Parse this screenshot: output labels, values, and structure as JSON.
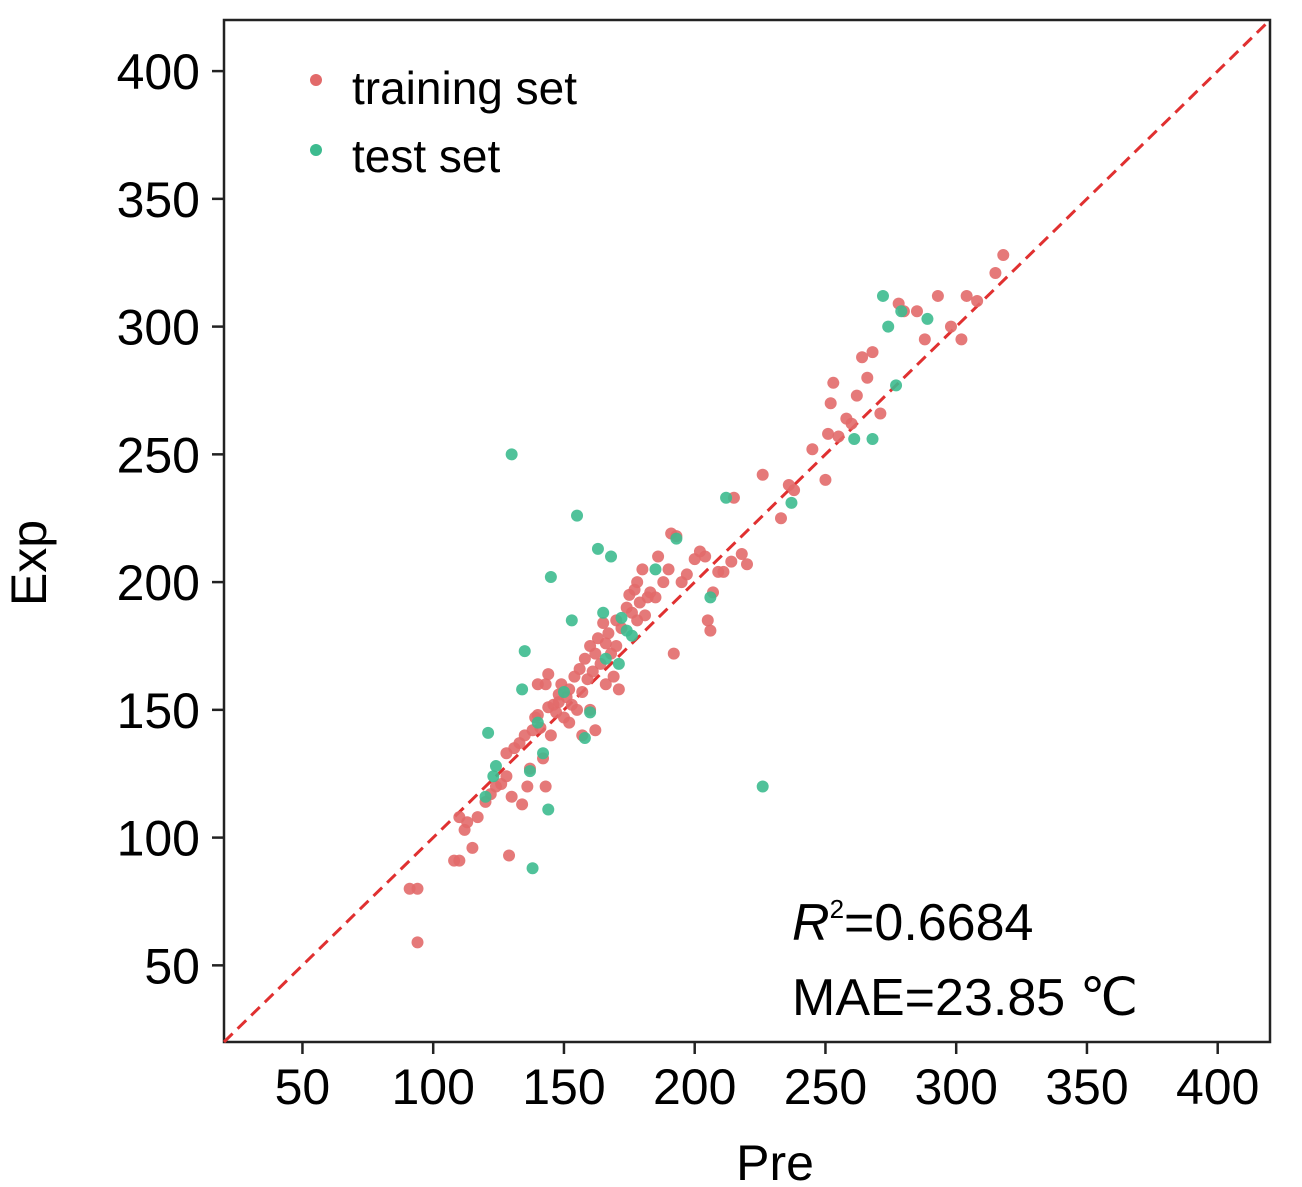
{
  "chart_data": {
    "type": "scatter",
    "xlabel": "Pre",
    "ylabel": "Exp",
    "xlim": [
      20,
      420
    ],
    "ylim": [
      20,
      420
    ],
    "xticks": [
      50,
      100,
      150,
      200,
      250,
      300,
      350,
      400
    ],
    "yticks": [
      50,
      100,
      150,
      200,
      250,
      300,
      350,
      400
    ],
    "reference_line": {
      "from": [
        20,
        20
      ],
      "to": [
        420,
        420
      ],
      "style": "dashed",
      "color": "#e03030"
    },
    "legend": {
      "placement": "top-left",
      "entries": [
        {
          "label": "training set",
          "color": "#e26a6a"
        },
        {
          "label": "test set",
          "color": "#3dbb8f"
        }
      ]
    },
    "annotations": {
      "r2_symbol": "R",
      "r2_sup": "2",
      "r2_value": "=0.6684",
      "mae": "MAE=23.85 ℃"
    },
    "series": [
      {
        "name": "training set",
        "color": "#e26a6a",
        "points": [
          [
            91,
            80
          ],
          [
            94,
            80
          ],
          [
            94,
            59
          ],
          [
            108,
            91
          ],
          [
            110,
            91
          ],
          [
            112,
            103
          ],
          [
            113,
            106
          ],
          [
            110,
            108
          ],
          [
            115,
            96
          ],
          [
            117,
            108
          ],
          [
            120,
            114
          ],
          [
            122,
            117
          ],
          [
            124,
            120
          ],
          [
            126,
            121
          ],
          [
            128,
            124
          ],
          [
            128,
            133
          ],
          [
            129,
            93
          ],
          [
            130,
            116
          ],
          [
            131,
            135
          ],
          [
            133,
            137
          ],
          [
            134,
            113
          ],
          [
            135,
            140
          ],
          [
            136,
            120
          ],
          [
            137,
            127
          ],
          [
            138,
            142
          ],
          [
            139,
            147
          ],
          [
            140,
            148
          ],
          [
            141,
            143
          ],
          [
            142,
            131
          ],
          [
            143,
            120
          ],
          [
            143,
            160
          ],
          [
            144,
            151
          ],
          [
            145,
            140
          ],
          [
            146,
            152
          ],
          [
            147,
            149
          ],
          [
            148,
            153
          ],
          [
            149,
            160
          ],
          [
            150,
            147
          ],
          [
            151,
            155
          ],
          [
            152,
            158
          ],
          [
            153,
            152
          ],
          [
            154,
            163
          ],
          [
            155,
            150
          ],
          [
            156,
            166
          ],
          [
            157,
            157
          ],
          [
            158,
            170
          ],
          [
            159,
            162
          ],
          [
            160,
            175
          ],
          [
            161,
            165
          ],
          [
            162,
            172
          ],
          [
            163,
            178
          ],
          [
            164,
            168
          ],
          [
            165,
            184
          ],
          [
            166,
            176
          ],
          [
            167,
            180
          ],
          [
            168,
            172
          ],
          [
            169,
            163
          ],
          [
            170,
            185
          ],
          [
            171,
            158
          ],
          [
            172,
            182
          ],
          [
            174,
            190
          ],
          [
            175,
            195
          ],
          [
            176,
            188
          ],
          [
            177,
            197
          ],
          [
            178,
            200
          ],
          [
            179,
            192
          ],
          [
            180,
            205
          ],
          [
            181,
            187
          ],
          [
            183,
            196
          ],
          [
            185,
            194
          ],
          [
            186,
            210
          ],
          [
            188,
            200
          ],
          [
            190,
            205
          ],
          [
            191,
            219
          ],
          [
            192,
            172
          ],
          [
            193,
            218
          ],
          [
            195,
            200
          ],
          [
            197,
            203
          ],
          [
            200,
            209
          ],
          [
            202,
            212
          ],
          [
            204,
            210
          ],
          [
            205,
            185
          ],
          [
            206,
            181
          ],
          [
            207,
            196
          ],
          [
            209,
            204
          ],
          [
            211,
            204
          ],
          [
            214,
            208
          ],
          [
            215,
            233
          ],
          [
            218,
            211
          ],
          [
            220,
            207
          ],
          [
            226,
            242
          ],
          [
            233,
            225
          ],
          [
            236,
            238
          ],
          [
            238,
            236
          ],
          [
            245,
            252
          ],
          [
            250,
            240
          ],
          [
            251,
            258
          ],
          [
            252,
            270
          ],
          [
            253,
            278
          ],
          [
            255,
            257
          ],
          [
            258,
            264
          ],
          [
            260,
            262
          ],
          [
            262,
            273
          ],
          [
            264,
            288
          ],
          [
            266,
            280
          ],
          [
            268,
            290
          ],
          [
            271,
            266
          ],
          [
            278,
            309
          ],
          [
            280,
            306
          ],
          [
            285,
            306
          ],
          [
            288,
            295
          ],
          [
            293,
            312
          ],
          [
            298,
            300
          ],
          [
            302,
            295
          ],
          [
            304,
            312
          ],
          [
            308,
            310
          ],
          [
            315,
            321
          ],
          [
            318,
            328
          ],
          [
            166,
            160
          ],
          [
            160,
            150
          ],
          [
            157,
            140
          ],
          [
            148,
            156
          ],
          [
            152,
            145
          ],
          [
            162,
            142
          ],
          [
            140,
            160
          ],
          [
            144,
            164
          ],
          [
            170,
            175
          ],
          [
            178,
            185
          ],
          [
            182,
            194
          ]
        ]
      },
      {
        "name": "test set",
        "color": "#3dbb8f",
        "points": [
          [
            120,
            116
          ],
          [
            121,
            141
          ],
          [
            123,
            124
          ],
          [
            124,
            128
          ],
          [
            130,
            250
          ],
          [
            134,
            158
          ],
          [
            135,
            173
          ],
          [
            137,
            126
          ],
          [
            138,
            88
          ],
          [
            140,
            145
          ],
          [
            142,
            133
          ],
          [
            144,
            111
          ],
          [
            145,
            202
          ],
          [
            150,
            157
          ],
          [
            153,
            185
          ],
          [
            155,
            226
          ],
          [
            158,
            139
          ],
          [
            160,
            149
          ],
          [
            163,
            213
          ],
          [
            166,
            170
          ],
          [
            168,
            210
          ],
          [
            172,
            186
          ],
          [
            174,
            181
          ],
          [
            176,
            179
          ],
          [
            185,
            205
          ],
          [
            193,
            217
          ],
          [
            206,
            194
          ],
          [
            212,
            233
          ],
          [
            226,
            120
          ],
          [
            237,
            231
          ],
          [
            261,
            256
          ],
          [
            268,
            256
          ],
          [
            272,
            312
          ],
          [
            274,
            300
          ],
          [
            277,
            277
          ],
          [
            279,
            306
          ],
          [
            289,
            303
          ],
          [
            165,
            188
          ],
          [
            171,
            168
          ]
        ]
      }
    ]
  }
}
